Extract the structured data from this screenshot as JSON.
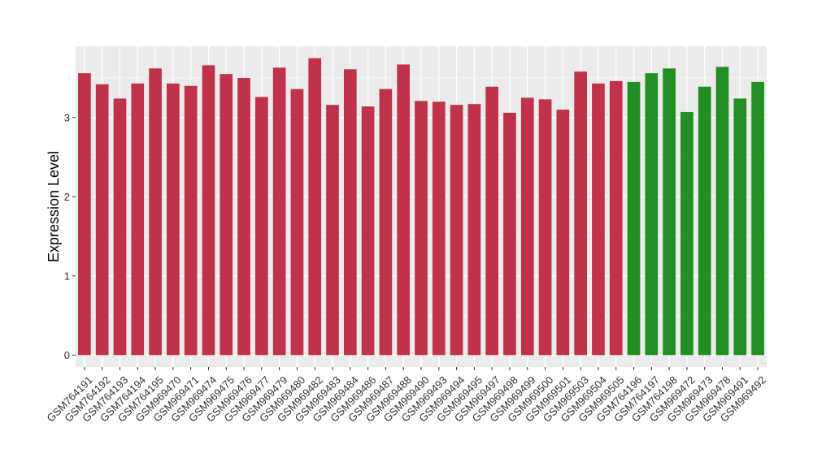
{
  "chart_data": {
    "type": "bar",
    "ylabel": "Expression Level",
    "xlabel": "",
    "ylim": [
      -0.15,
      3.9
    ],
    "yticks": [
      0,
      1,
      2,
      3
    ],
    "grid": true,
    "colors": {
      "panel_bg": "#EBEBEB",
      "grid": "#FFFFFF",
      "group_a": "#C0324A",
      "group_b": "#238E23",
      "axis_text": "#333333",
      "tick": "#333333"
    },
    "categories": [
      "GSM764191",
      "GSM764192",
      "GSM764193",
      "GSM764194",
      "GSM764195",
      "GSM969470",
      "GSM969471",
      "GSM969474",
      "GSM969475",
      "GSM969476",
      "GSM969477",
      "GSM969479",
      "GSM969480",
      "GSM969482",
      "GSM969483",
      "GSM969484",
      "GSM969486",
      "GSM969487",
      "GSM969488",
      "GSM969490",
      "GSM969493",
      "GSM969494",
      "GSM969495",
      "GSM969497",
      "GSM969498",
      "GSM969499",
      "GSM969500",
      "GSM969501",
      "GSM969503",
      "GSM969504",
      "GSM969505",
      "GSM764196",
      "GSM764197",
      "GSM764198",
      "GSM969472",
      "GSM969473",
      "GSM969478",
      "GSM969491",
      "GSM969492"
    ],
    "values": [
      3.56,
      3.42,
      3.24,
      3.43,
      3.62,
      3.43,
      3.4,
      3.66,
      3.55,
      3.5,
      3.26,
      3.63,
      3.36,
      3.75,
      3.16,
      3.61,
      3.14,
      3.36,
      3.67,
      3.21,
      3.2,
      3.16,
      3.17,
      3.39,
      3.06,
      3.25,
      3.23,
      3.1,
      3.58,
      3.43,
      3.46,
      3.45,
      3.56,
      3.62,
      3.07,
      3.39,
      3.64,
      3.24,
      3.45
    ],
    "groups": [
      "a",
      "a",
      "a",
      "a",
      "a",
      "a",
      "a",
      "a",
      "a",
      "a",
      "a",
      "a",
      "a",
      "a",
      "a",
      "a",
      "a",
      "a",
      "a",
      "a",
      "a",
      "a",
      "a",
      "a",
      "a",
      "a",
      "a",
      "a",
      "a",
      "a",
      "a",
      "b",
      "b",
      "b",
      "b",
      "b",
      "b",
      "b",
      "b"
    ]
  }
}
